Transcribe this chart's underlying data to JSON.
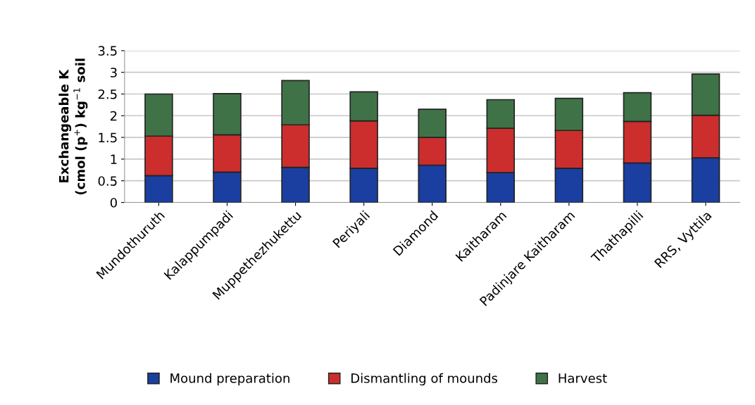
{
  "chart_data": {
    "type": "bar",
    "stacked": true,
    "ylabel": "Exchangeable K\n(cmol (p$^{+}$) kg$^{−1}$ soil",
    "categories": [
      "Mundothuruth",
      "Kalappumpadi",
      "Muppethezhukettu",
      "Periyali",
      "Diamond",
      "Kaitharam",
      "Padinjare Kaitharam",
      "Thathapilli",
      "RRS, Vyttila"
    ],
    "series": [
      {
        "name": "Mound preparation",
        "color": "#1a3fa0",
        "values": [
          0.62,
          0.7,
          0.81,
          0.79,
          0.86,
          0.69,
          0.79,
          0.91,
          1.03
        ]
      },
      {
        "name": "Dismantling of mounds",
        "color": "#cc2e2e",
        "values": [
          0.91,
          0.86,
          0.98,
          1.09,
          0.64,
          1.02,
          0.87,
          0.96,
          0.98
        ]
      },
      {
        "name": "Harvest",
        "color": "#3f7347",
        "values": [
          0.97,
          0.95,
          1.02,
          0.67,
          0.65,
          0.66,
          0.74,
          0.66,
          0.95
        ]
      }
    ],
    "ylim": [
      0,
      3.5
    ],
    "yticks": [
      0,
      0.5,
      1,
      1.5,
      2,
      2.5,
      3,
      3.5
    ],
    "grid": "y",
    "legend": "bottom"
  }
}
